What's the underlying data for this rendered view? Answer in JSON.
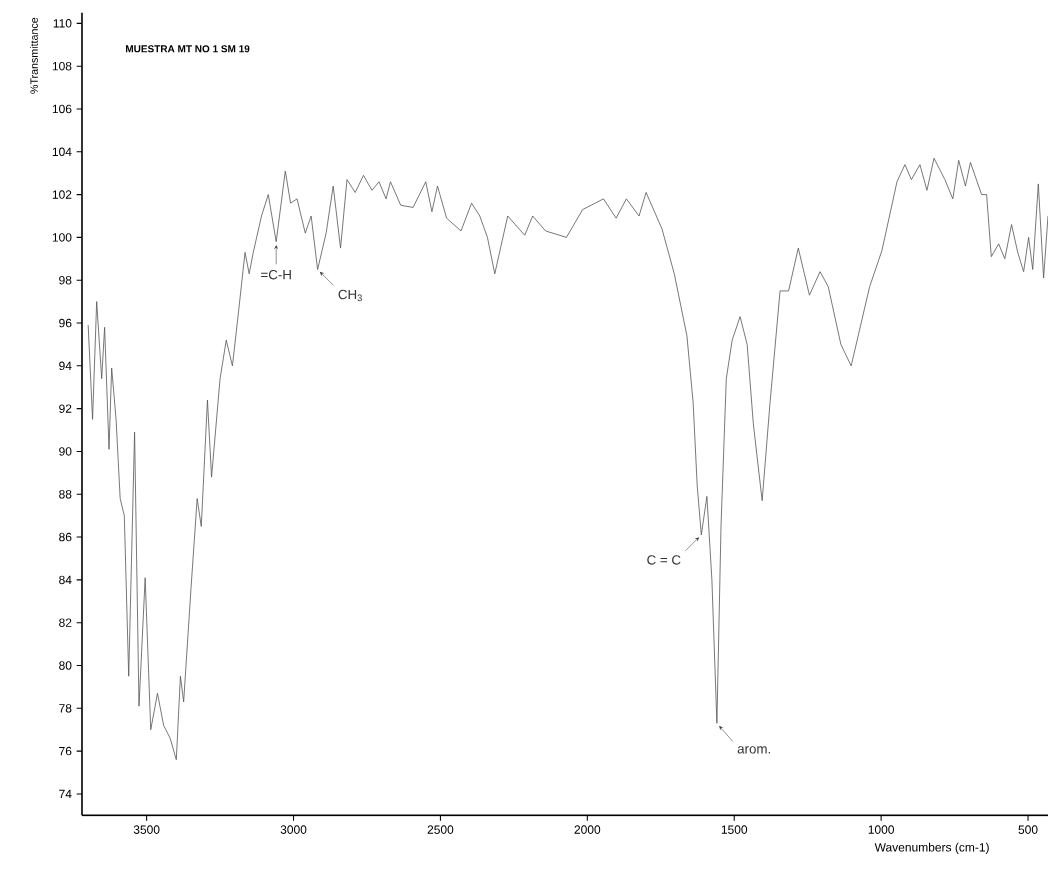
{
  "chart_data": {
    "type": "line",
    "title": "MUESTRA MT NO 1 SM 19",
    "xlabel": "Wavenumbers (cm-1)",
    "ylabel": "%Transmittance",
    "xlim": [
      3720,
      432
    ],
    "ylim": [
      73,
      110.5
    ],
    "xticks": [
      3500,
      3000,
      2500,
      2000,
      1500,
      1000,
      500
    ],
    "yticks": [
      74,
      76,
      78,
      80,
      82,
      84,
      86,
      88,
      90,
      92,
      94,
      96,
      98,
      100,
      102,
      104,
      106,
      108,
      110
    ],
    "grid": false,
    "series": [
      {
        "color": "#555555",
        "x": [
          3699,
          3684,
          3670,
          3653,
          3643,
          3628,
          3619,
          3604,
          3590,
          3576,
          3561,
          3541,
          3526,
          3505,
          3486,
          3463,
          3442,
          3420,
          3399,
          3385,
          3374,
          3349,
          3328,
          3314,
          3293,
          3279,
          3250,
          3229,
          3208,
          3189,
          3165,
          3151,
          3137,
          3109,
          3086,
          3059,
          3028,
          3010,
          2988,
          2960,
          2940,
          2918,
          2889,
          2865,
          2840,
          2818,
          2790,
          2762,
          2733,
          2709,
          2685,
          2670,
          2635,
          2593,
          2550,
          2529,
          2510,
          2479,
          2430,
          2394,
          2366,
          2340,
          2315,
          2271,
          2213,
          2186,
          2142,
          2071,
          2016,
          1945,
          1902,
          1867,
          1824,
          1800,
          1746,
          1704,
          1661,
          1640,
          1626,
          1612,
          1593,
          1576,
          1559,
          1545,
          1527,
          1507,
          1480,
          1456,
          1435,
          1405,
          1378,
          1344,
          1315,
          1282,
          1244,
          1208,
          1180,
          1137,
          1102,
          1039,
          997,
          946,
          919,
          897,
          868,
          844,
          820,
          783,
          756,
          736,
          713,
          696,
          658,
          641,
          625,
          600,
          579,
          556,
          535,
          515,
          498,
          484,
          465,
          447,
          432
        ],
        "values": [
          95.9,
          91.5,
          97.0,
          93.4,
          95.8,
          90.1,
          93.9,
          91.5,
          87.8,
          87.0,
          79.5,
          90.9,
          78.1,
          84.1,
          77.0,
          78.7,
          77.2,
          76.6,
          75.6,
          79.5,
          78.3,
          83.6,
          87.8,
          86.5,
          92.4,
          88.8,
          93.4,
          95.2,
          94.0,
          96.3,
          99.3,
          98.3,
          99.3,
          101.0,
          102.0,
          99.8,
          103.1,
          101.6,
          101.8,
          100.2,
          101.0,
          98.5,
          100.2,
          102.4,
          99.5,
          102.7,
          102.1,
          102.9,
          102.2,
          102.6,
          101.8,
          102.6,
          101.5,
          101.4,
          102.6,
          101.2,
          102.4,
          100.9,
          100.3,
          101.6,
          101.0,
          100.0,
          98.3,
          101.0,
          100.1,
          101.0,
          100.3,
          100.0,
          101.3,
          101.8,
          100.9,
          101.8,
          101.0,
          102.1,
          100.4,
          98.3,
          95.4,
          92.3,
          88.4,
          86.1,
          87.9,
          84.0,
          77.3,
          86.5,
          93.4,
          95.2,
          96.3,
          95.0,
          91.3,
          87.7,
          92.3,
          97.5,
          97.5,
          99.5,
          97.3,
          98.4,
          97.7,
          95.0,
          94.0,
          97.7,
          99.4,
          102.6,
          103.4,
          102.7,
          103.4,
          102.2,
          103.7,
          102.7,
          101.8,
          103.6,
          102.4,
          103.5,
          102.0,
          102.0,
          99.1,
          99.7,
          99.0,
          100.6,
          99.3,
          98.4,
          100.0,
          98.5,
          102.5,
          98.1,
          101.0
        ]
      }
    ],
    "annotations": [
      {
        "text": "=C-H",
        "x": 3059,
        "y": 99.8
      },
      {
        "text": "CH$_{3}$",
        "x": 2918,
        "y": 98.5
      },
      {
        "text": "C = C",
        "x": 1612,
        "y": 86.1
      },
      {
        "text": "arom.",
        "x": 1559,
        "y": 77.3
      }
    ]
  }
}
